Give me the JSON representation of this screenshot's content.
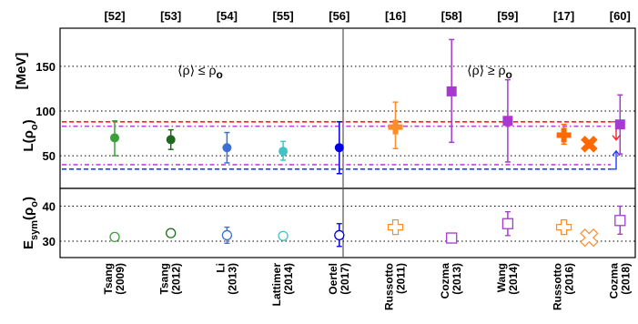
{
  "chart_data": [
    {
      "type": "scatter",
      "title": "",
      "ylabel_main": "L(ρ",
      "ylabel_sub": "o",
      "ylabel_tail": ")",
      "yunit": "[MeV]",
      "ylim": [
        22,
        190
      ],
      "yticks": [
        "50",
        "100",
        "150"
      ],
      "grid": "horizontal dotted at ticks",
      "regions": {
        "left": {
          "label": "⟨ρ⟩ ≤ ρ",
          "sub": "o"
        },
        "right": {
          "label": "⟨ρ⟩ ≥ ρ",
          "sub": "o"
        }
      },
      "references": [
        "[52]",
        "[53]",
        "[54]",
        "[55]",
        "[56]",
        "[16]",
        "[58]",
        "[59]",
        "[17]",
        "[60]"
      ],
      "upper_limit_band": [
        83,
        88
      ],
      "lower_limit_band": [
        35,
        40
      ],
      "series": [
        {
          "x": 1,
          "y": 70,
          "lo": 50,
          "hi": 89,
          "color": "#3aa03a",
          "marker": "circle"
        },
        {
          "x": 2,
          "y": 68,
          "lo": 57,
          "hi": 79,
          "color": "#1c6b1c",
          "marker": "circle"
        },
        {
          "x": 3,
          "y": 59,
          "lo": 42,
          "hi": 76,
          "color": "#3a6fd6",
          "marker": "circle"
        },
        {
          "x": 4,
          "y": 55,
          "lo": 45,
          "hi": 66,
          "color": "#3ec6c6",
          "marker": "circle"
        },
        {
          "x": 5,
          "y": 59,
          "lo": 30,
          "hi": 88,
          "color": "#0000e0",
          "marker": "circle"
        },
        {
          "x": 6,
          "y": 82,
          "lo": 58,
          "hi": 110,
          "color": "#ff8c2a",
          "marker": "cross"
        },
        {
          "x": 7,
          "y": 122,
          "lo": 65,
          "hi": 180,
          "color": "#a63ad0",
          "marker": "square"
        },
        {
          "x": 8,
          "y": 89,
          "lo": 43,
          "hi": 135,
          "color": "#a63ad0",
          "marker": "square"
        },
        {
          "x": 9,
          "y": 73,
          "lo": 63,
          "hi": 85,
          "color": "#ff6a00",
          "marker": "cross"
        },
        {
          "x": 9.45,
          "y": 63,
          "color": "#ff6a00",
          "marker": "x"
        },
        {
          "x": 10,
          "y": 85,
          "lo": 52,
          "hi": 118,
          "color": "#a63ad0",
          "marker": "square"
        }
      ]
    },
    {
      "type": "scatter",
      "ylabel_main": "E",
      "ylabel_sub": "sym",
      "ylabel_tail": "(ρ",
      "ylabel_sub2": "o",
      "ylabel_tail2": ")",
      "ylim": [
        25,
        45
      ],
      "yticks": [
        "30",
        "40"
      ],
      "categories": [
        [
          "Tsang",
          "(2009)"
        ],
        [
          "Tsang",
          "(2012)"
        ],
        [
          "Li",
          "(2013)"
        ],
        [
          "Lattimer",
          "(2014)"
        ],
        [
          "Oertel",
          "(2017)"
        ],
        [
          "Russotto",
          "(2011)"
        ],
        [
          "Cozma",
          "(2013)"
        ],
        [
          "Wang",
          "(2014)"
        ],
        [
          "Russotto",
          "(2016)"
        ],
        [
          "Cozma",
          "(2018)"
        ]
      ],
      "series": [
        {
          "x": 1,
          "y": 31.2,
          "color": "#3aa03a",
          "marker": "circle-open"
        },
        {
          "x": 2,
          "y": 32.3,
          "color": "#1c6b1c",
          "marker": "circle-open"
        },
        {
          "x": 3,
          "y": 31.7,
          "lo": 29.4,
          "hi": 34.0,
          "color": "#3a6fd6",
          "marker": "circle-open"
        },
        {
          "x": 4,
          "y": 31.5,
          "color": "#3ec6c6",
          "marker": "circle-open"
        },
        {
          "x": 5,
          "y": 31.7,
          "lo": 28.5,
          "hi": 35.0,
          "color": "#0000e0",
          "marker": "circle-open"
        },
        {
          "x": 6,
          "y": 34.0,
          "color": "#ff8c2a",
          "marker": "cross-open"
        },
        {
          "x": 7,
          "y": 30.9,
          "color": "#a63ad0",
          "marker": "square-open"
        },
        {
          "x": 8,
          "y": 35.0,
          "lo": 31.6,
          "hi": 38.4,
          "color": "#a63ad0",
          "marker": "square-open"
        },
        {
          "x": 9,
          "y": 34.0,
          "color": "#ff8c2a",
          "marker": "cross-open"
        },
        {
          "x": 9.45,
          "y": 31.0,
          "color": "#ff8c2a",
          "marker": "x-open"
        },
        {
          "x": 10,
          "y": 35.9,
          "lo": 32.0,
          "hi": 40.0,
          "color": "#a63ad0",
          "marker": "square-open"
        }
      ]
    }
  ]
}
